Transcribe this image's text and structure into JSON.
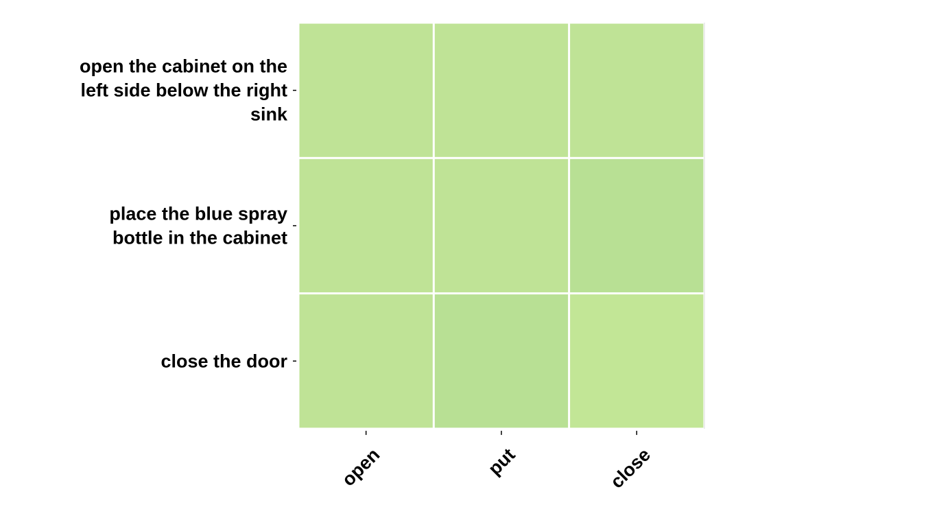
{
  "chart_data": {
    "type": "heatmap",
    "title": "",
    "xlabel": "",
    "ylabel": "",
    "columns": [
      "open",
      "put",
      "close"
    ],
    "rows": [
      [
        "open the cabinet on the",
        "left side below the right",
        "sink"
      ],
      [
        "place the blue spray",
        "bottle in the cabinet"
      ],
      [
        "close the door"
      ]
    ],
    "row_labels": [
      "open the cabinet on the left side below the right sink",
      "place the blue spray bottle in the cabinet",
      "close the door"
    ],
    "values": [
      [
        0.33,
        0.34,
        0.33
      ],
      [
        0.33,
        0.33,
        0.36
      ],
      [
        0.33,
        0.36,
        0.31
      ]
    ],
    "cell_colors": [
      [
        "#bfe396",
        "#bfe396",
        "#bfe396"
      ],
      [
        "#bfe396",
        "#bfe396",
        "#b8e094"
      ],
      [
        "#bfe396",
        "#b8e094",
        "#c2e696"
      ]
    ],
    "grid": false,
    "colorbar": false
  }
}
